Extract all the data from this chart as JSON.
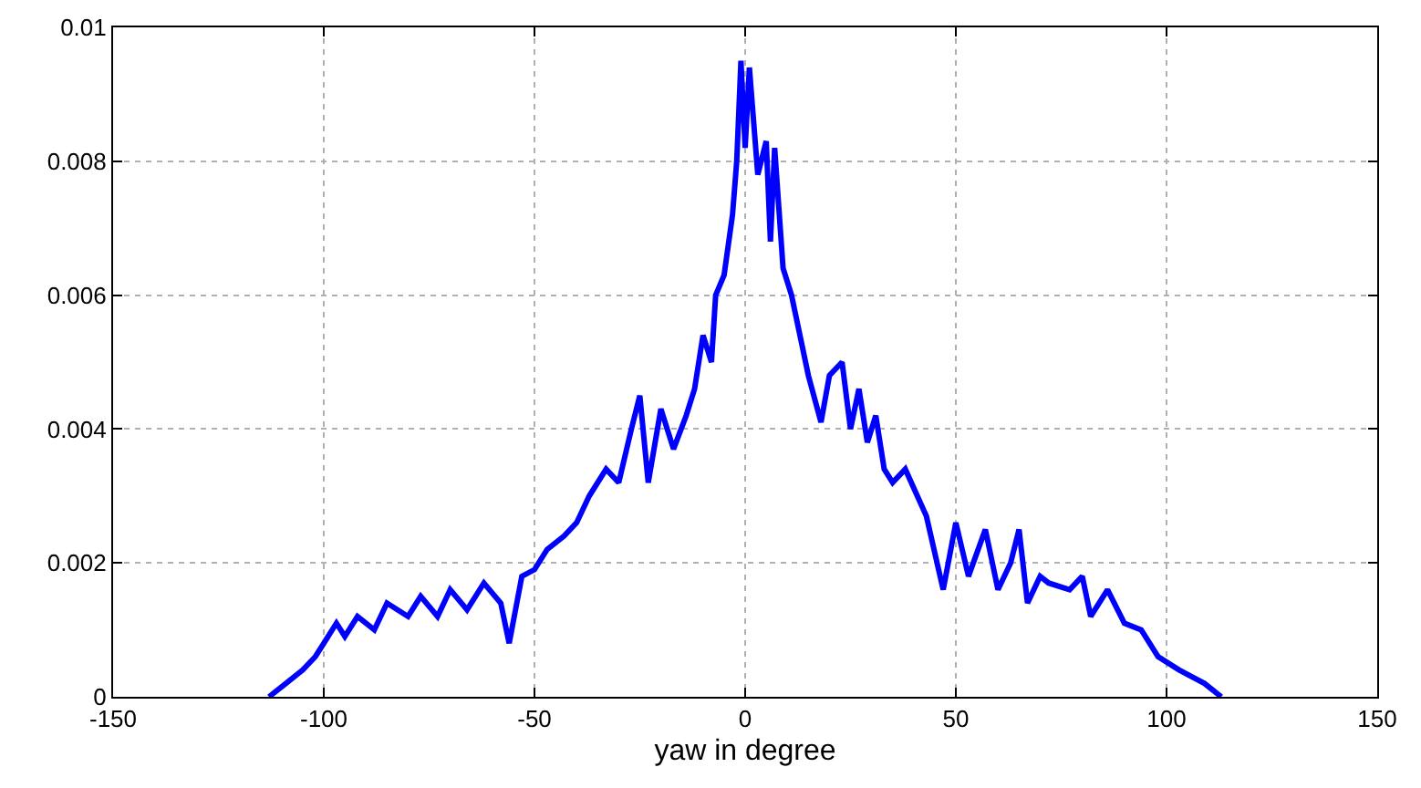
{
  "chart_data": {
    "type": "line",
    "xlabel": "yaw in degree",
    "xlim": [
      -150,
      150
    ],
    "xticks": [
      -150,
      -100,
      -50,
      0,
      50,
      100,
      150
    ],
    "ylim": [
      0,
      0.01
    ],
    "yticks": [
      0,
      0.002,
      0.004,
      0.006,
      0.008,
      0.01
    ],
    "grid": true,
    "marker": "none",
    "series": [
      {
        "color": "#0000ff",
        "x": [
          -113,
          -109,
          -105,
          -102,
          -100,
          -97,
          -95,
          -92,
          -88,
          -85,
          -80,
          -77,
          -73,
          -70,
          -66,
          -62,
          -58,
          -56,
          -53,
          -50,
          -47,
          -43,
          -40,
          -37,
          -33,
          -30,
          -27,
          -25,
          -23,
          -20,
          -17,
          -14,
          -12,
          -10,
          -8,
          -7,
          -5,
          -3,
          -2,
          -1,
          0,
          1,
          2,
          3,
          5,
          6,
          7,
          9,
          11,
          13,
          15,
          18,
          20,
          23,
          25,
          27,
          29,
          31,
          33,
          35,
          38,
          43,
          47,
          50,
          53,
          57,
          60,
          63,
          65,
          67,
          70,
          72,
          77,
          80,
          82,
          86,
          90,
          94,
          98,
          103,
          109,
          113
        ],
        "values": [
          0,
          0.0002,
          0.0004,
          0.0006,
          0.0008,
          0.0011,
          0.0009,
          0.0012,
          0.001,
          0.0014,
          0.0012,
          0.0015,
          0.0012,
          0.0016,
          0.0013,
          0.0017,
          0.0014,
          0.0008,
          0.0018,
          0.0019,
          0.0022,
          0.0024,
          0.0026,
          0.003,
          0.0034,
          0.0032,
          0.004,
          0.0045,
          0.0032,
          0.0043,
          0.0037,
          0.0042,
          0.0046,
          0.0054,
          0.005,
          0.006,
          0.0063,
          0.0072,
          0.008,
          0.0095,
          0.0082,
          0.0094,
          0.0086,
          0.0078,
          0.0083,
          0.0068,
          0.0082,
          0.0064,
          0.006,
          0.0054,
          0.0048,
          0.0041,
          0.0048,
          0.005,
          0.004,
          0.0046,
          0.0038,
          0.0042,
          0.0034,
          0.0032,
          0.0034,
          0.0027,
          0.0016,
          0.0026,
          0.0018,
          0.0025,
          0.0016,
          0.002,
          0.0025,
          0.0014,
          0.0018,
          0.0017,
          0.0016,
          0.0018,
          0.0012,
          0.0016,
          0.0011,
          0.001,
          0.0006,
          0.0004,
          0.0002,
          0
        ]
      }
    ]
  }
}
